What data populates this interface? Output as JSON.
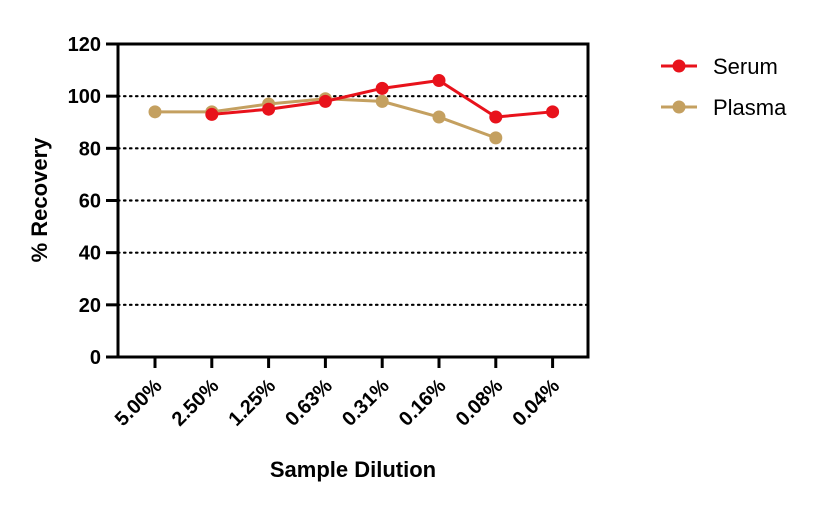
{
  "chart_data": {
    "type": "line",
    "categories": [
      "5.00%",
      "2.50%",
      "1.25%",
      "0.63%",
      "0.31%",
      "0.16%",
      "0.08%",
      "0.04%"
    ],
    "series": [
      {
        "name": "Serum",
        "color": "#e8121b",
        "values": [
          null,
          93,
          95,
          98,
          103,
          106,
          92,
          94
        ]
      },
      {
        "name": "Plasma",
        "color": "#c4a060",
        "values": [
          94,
          94,
          97,
          99,
          98,
          92,
          84,
          null
        ]
      }
    ],
    "xlabel": "Sample Dilution",
    "ylabel": "% Recovery",
    "ylim": [
      0,
      120
    ],
    "yticks": [
      0,
      20,
      40,
      60,
      80,
      100,
      120
    ],
    "grid": "dotted horizontal",
    "legend": "top-right"
  }
}
